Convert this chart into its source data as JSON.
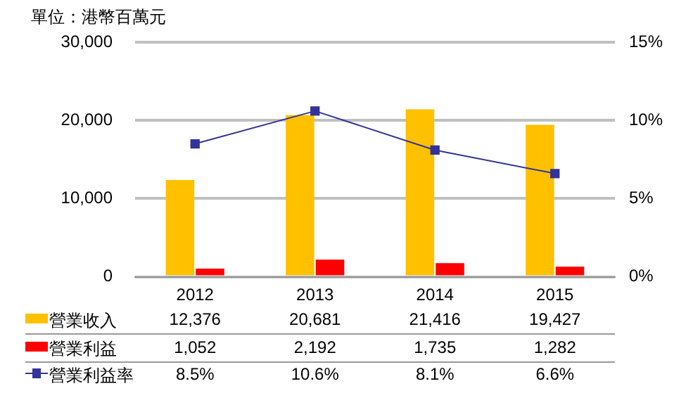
{
  "chart_data": {
    "type": "bar",
    "title": "單位：港幣百萬元",
    "categories": [
      "2012",
      "2013",
      "2014",
      "2015"
    ],
    "series": [
      {
        "name": "營業收入",
        "color": "#ffc000",
        "values": [
          12376,
          20681,
          21416,
          19427
        ],
        "value_labels": [
          "12,376",
          "20,681",
          "21,416",
          "19,427"
        ]
      },
      {
        "name": "營業利益",
        "color": "#ff0000",
        "values": [
          1052,
          2192,
          1735,
          1282
        ],
        "value_labels": [
          "1,052",
          "2,192",
          "1,735",
          "1,282"
        ]
      },
      {
        "name": "營業利益率",
        "type": "line",
        "axis": "y2",
        "color": "#333399",
        "values": [
          8.5,
          10.6,
          8.1,
          6.6
        ],
        "value_labels": [
          "8.5%",
          "10.6%",
          "8.1%",
          "6.6%"
        ]
      }
    ],
    "ylim": [
      0,
      30000
    ],
    "yticks": [
      {
        "value": 0,
        "label": "0"
      },
      {
        "value": 10000,
        "label": "10,000"
      },
      {
        "value": 20000,
        "label": "20,000"
      },
      {
        "value": 30000,
        "label": "30,000"
      }
    ],
    "y2lim": [
      0,
      15
    ],
    "y2ticks": [
      {
        "value": 0,
        "label": "0%"
      },
      {
        "value": 5,
        "label": "5%"
      },
      {
        "value": 10,
        "label": "10%"
      },
      {
        "value": 15,
        "label": "15%"
      }
    ],
    "grid": "y",
    "legend": "bottom",
    "marker": "square"
  }
}
